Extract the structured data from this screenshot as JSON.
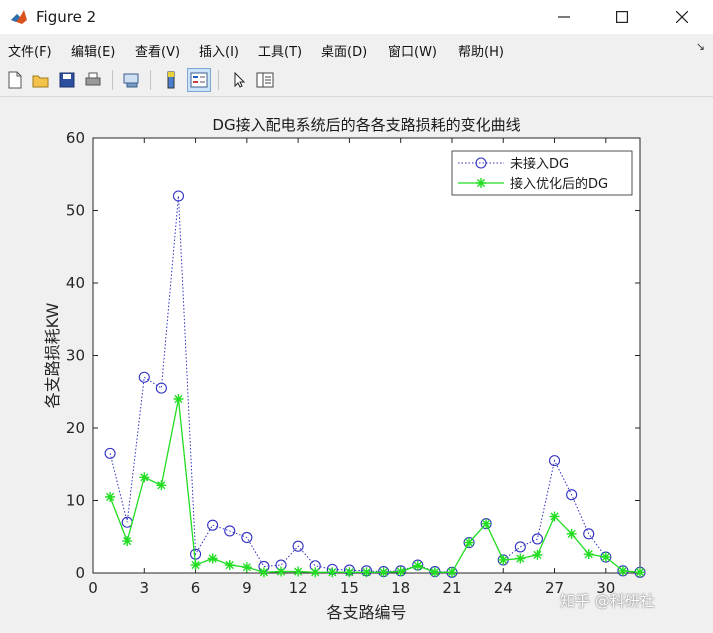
{
  "window": {
    "title": "Figure 2",
    "minimize_icon": "minimize-icon",
    "maximize_icon": "maximize-icon",
    "close_icon": "close-icon"
  },
  "menu": {
    "items": [
      "文件(F)",
      "编辑(E)",
      "查看(V)",
      "插入(I)",
      "工具(T)",
      "桌面(D)",
      "窗口(W)",
      "帮助(H)"
    ],
    "overflow_icon": "chevron-icon"
  },
  "toolbar": {
    "buttons": [
      "new-figure-icon",
      "open-file-icon",
      "save-icon",
      "print-icon",
      "link-icon",
      "colorbar-icon",
      "legend-icon",
      "pointer-icon",
      "property-editor-icon"
    ]
  },
  "chart_data": {
    "type": "line",
    "title": "DG接入配电系统后的各各支路损耗的变化曲线",
    "xlabel": "各支路编号",
    "ylabel": "各支路损耗KW",
    "xlim": [
      0,
      32
    ],
    "ylim": [
      0,
      60
    ],
    "xticks": [
      0,
      3,
      6,
      9,
      12,
      15,
      18,
      21,
      24,
      27,
      30
    ],
    "yticks": [
      0,
      10,
      20,
      30,
      40,
      50,
      60
    ],
    "grid": false,
    "legend_position": "top-right",
    "x": [
      1,
      2,
      3,
      4,
      5,
      6,
      7,
      8,
      9,
      10,
      11,
      12,
      13,
      14,
      15,
      16,
      17,
      18,
      19,
      20,
      21,
      22,
      23,
      24,
      25,
      26,
      27,
      28,
      29,
      30,
      31,
      32
    ],
    "series": [
      {
        "name": "未接入DG",
        "color": "#3030c0",
        "marker": "circle",
        "line": "dotted",
        "values": [
          16.5,
          7.0,
          27.0,
          25.5,
          52.0,
          2.6,
          6.6,
          5.8,
          4.9,
          0.9,
          1.1,
          3.7,
          1.0,
          0.5,
          0.4,
          0.3,
          0.2,
          0.3,
          1.1,
          0.2,
          0.1,
          4.2,
          6.8,
          1.8,
          3.6,
          4.7,
          15.5,
          10.8,
          5.4,
          2.2,
          0.3,
          0.1
        ]
      },
      {
        "name": "接入优化后的DG",
        "color": "#22dd22",
        "marker": "asterisk",
        "line": "solid",
        "values": [
          10.5,
          4.4,
          13.2,
          12.1,
          24.0,
          1.1,
          2.0,
          1.1,
          0.8,
          0.1,
          0.2,
          0.2,
          0.1,
          0.1,
          0.1,
          0.1,
          0.1,
          0.2,
          1.0,
          0.1,
          0.1,
          4.2,
          6.8,
          1.8,
          2.0,
          2.5,
          7.8,
          5.4,
          2.6,
          2.2,
          0.3,
          0.1
        ]
      }
    ]
  },
  "watermark": "知乎 @科研社"
}
